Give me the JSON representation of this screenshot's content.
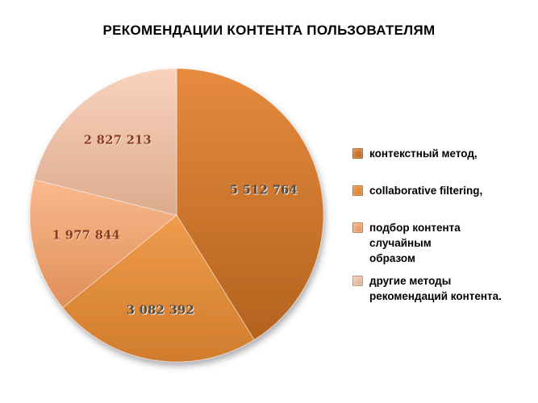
{
  "title": "РЕКОМЕНДАЦИИ КОНТЕНТА ПОЛЬЗОВАТЕЛЯМ",
  "colors": {
    "background": "#FFFFFF",
    "title_text": "#000000",
    "legend_text": "#000000"
  },
  "chart_data": {
    "type": "pie",
    "title": "РЕКОМЕНДАЦИИ КОНТЕНТА ПОЛЬЗОВАТЕЛЯМ",
    "categories": [
      "контекстный метод,",
      "collaborative filtering,",
      "подбор контента случайным образом",
      "другие методы рекомендаций контента."
    ],
    "values": [
      5512764,
      3082392,
      1977844,
      2827213
    ],
    "value_labels": [
      "5 512 764",
      "3 082 392",
      "1 977 844",
      "2 827 213"
    ],
    "start_angle_deg": 0,
    "direction": "clockwise",
    "legend_position": "right",
    "slice_colors": [
      {
        "light": "#E68B3E",
        "base": "#D6772A",
        "dark": "#B4621E"
      },
      {
        "light": "#F09C4D",
        "base": "#E68E3C",
        "dark": "#D07C2C"
      },
      {
        "light": "#F9B98E",
        "base": "#F2A470",
        "dark": "#E08F58"
      },
      {
        "light": "#F9D3BD",
        "base": "#F2C3A6",
        "dark": "#DCAB8E"
      }
    ],
    "label_text_colors": [
      "#4D4C4A",
      "#4D4C4A",
      "#8C3A1C",
      "#8C3A1C"
    ]
  },
  "legend": {
    "items": [
      {
        "label": "контекстный метод,"
      },
      {
        "label": "collaborative filtering,"
      },
      {
        "label": "подбор контента случайным\nобразом"
      },
      {
        "label": "другие методы\nрекомендаций контента."
      }
    ]
  }
}
